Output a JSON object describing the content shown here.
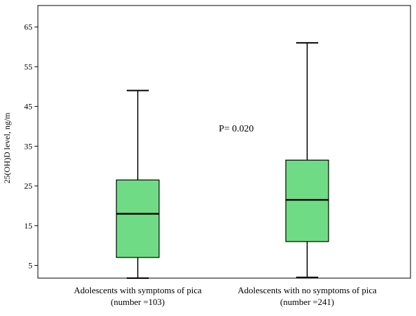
{
  "chart_data": {
    "type": "box",
    "title": "",
    "xlabel": "",
    "ylabel": "25(OH)D level, ng/m",
    "ylim": [
      1.8,
      70.4
    ],
    "yticks": [
      5,
      15,
      25,
      35,
      45,
      55,
      65
    ],
    "grid": false,
    "annotation": "P= 0.020",
    "colors": {
      "box_fill": "#6fdc85",
      "box_stroke": "#000000",
      "median": "#000000"
    },
    "categories": [
      {
        "label_line1": "Adolescents with symptoms of pica",
        "label_line2": "(number =103)"
      },
      {
        "label_line1": "Adolescents with no symptoms of pica",
        "label_line2": "(number =241)"
      }
    ],
    "boxes": [
      {
        "min": 1.8,
        "q1": 7.0,
        "median": 18.0,
        "q3": 26.5,
        "max": 49.0
      },
      {
        "min": 2.0,
        "q1": 11.0,
        "median": 21.5,
        "q3": 31.5,
        "max": 61.0
      }
    ]
  }
}
